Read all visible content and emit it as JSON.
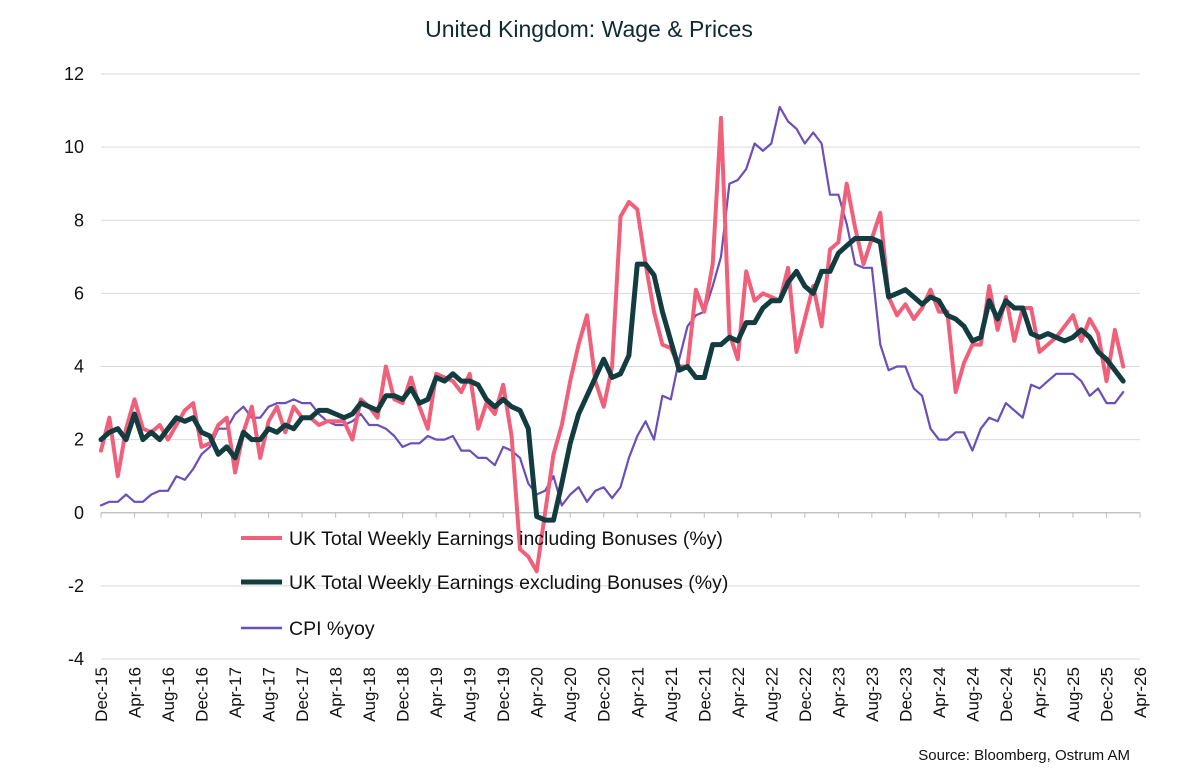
{
  "chart_data": {
    "type": "line",
    "title": "United Kingdom: Wage & Prices",
    "source": "Source: Bloomberg,  Ostrum  AM",
    "ylim": [
      -4,
      12
    ],
    "yticks": [
      -4,
      -2,
      0,
      2,
      4,
      6,
      8,
      10,
      12
    ],
    "x_start": "2015-12",
    "x_end": "2026-04",
    "xtick_labels": [
      "Dec-15",
      "Apr-16",
      "Aug-16",
      "Dec-16",
      "Apr-17",
      "Aug-17",
      "Dec-17",
      "Apr-18",
      "Aug-18",
      "Dec-18",
      "Apr-19",
      "Aug-19",
      "Dec-19",
      "Apr-20",
      "Aug-20",
      "Dec-20",
      "Apr-21",
      "Aug-21",
      "Dec-21",
      "Apr-22",
      "Aug-22",
      "Dec-22",
      "Apr-23",
      "Aug-23",
      "Dec-23",
      "Apr-24",
      "Aug-24",
      "Dec-24",
      "Apr-25",
      "Aug-25",
      "Dec-25",
      "Apr-26"
    ],
    "grid": "horizontal",
    "legend_position": "lower-left",
    "series": [
      {
        "name": "UK Total Weekly Earnings including Bonuses (%y)",
        "color": "#f0607a",
        "start": "2015-12",
        "values": [
          1.7,
          2.6,
          1.0,
          2.3,
          3.1,
          2.3,
          2.2,
          2.4,
          2.0,
          2.4,
          2.8,
          3.0,
          1.8,
          1.9,
          2.4,
          2.6,
          1.1,
          2.2,
          2.9,
          1.5,
          2.5,
          2.9,
          2.2,
          2.9,
          2.6,
          2.6,
          2.4,
          2.5,
          2.5,
          2.5,
          2.0,
          3.1,
          2.9,
          2.6,
          4.0,
          3.1,
          3.0,
          3.7,
          2.9,
          2.3,
          3.8,
          3.7,
          3.6,
          3.3,
          3.8,
          2.3,
          3.0,
          2.7,
          3.5,
          2.1,
          -1.0,
          -1.2,
          -1.6,
          0.0,
          1.6,
          2.4,
          3.6,
          4.6,
          5.4,
          3.6,
          2.9,
          4.0,
          8.1,
          8.5,
          8.3,
          6.8,
          5.5,
          4.6,
          4.5,
          4.0,
          4.0,
          6.1,
          5.5,
          6.8,
          10.8,
          4.9,
          4.2,
          6.6,
          5.8,
          6.0,
          5.9,
          5.8,
          6.7,
          4.4,
          5.3,
          6.2,
          5.1,
          7.2,
          7.4,
          9.0,
          7.8,
          6.8,
          7.5,
          8.2,
          5.9,
          5.4,
          5.7,
          5.3,
          5.6,
          6.1,
          5.5,
          5.5,
          3.3,
          4.1,
          4.6,
          4.6,
          6.2,
          5.0,
          5.9,
          4.7,
          5.6,
          5.6,
          4.4,
          4.6,
          4.8,
          5.1,
          5.4,
          4.7,
          5.3,
          4.9,
          3.6,
          5.0,
          4.0
        ]
      },
      {
        "name": "UK Total Weekly Earnings excluding Bonuses (%y)",
        "color": "#123c40",
        "start": "2015-12",
        "values": [
          2.0,
          2.2,
          2.3,
          2.0,
          2.7,
          2.0,
          2.2,
          2.0,
          2.3,
          2.6,
          2.5,
          2.6,
          2.2,
          2.1,
          1.6,
          1.8,
          1.5,
          2.2,
          2.0,
          2.0,
          2.3,
          2.2,
          2.4,
          2.3,
          2.6,
          2.6,
          2.8,
          2.8,
          2.7,
          2.6,
          2.7,
          3.0,
          2.9,
          2.8,
          3.2,
          3.2,
          3.1,
          3.4,
          3.0,
          3.1,
          3.7,
          3.6,
          3.8,
          3.6,
          3.6,
          3.5,
          3.1,
          2.9,
          3.1,
          2.9,
          2.8,
          2.3,
          -0.1,
          -0.2,
          -0.2,
          0.8,
          1.9,
          2.7,
          3.2,
          3.7,
          4.2,
          3.7,
          3.8,
          4.3,
          6.8,
          6.8,
          6.5,
          5.5,
          4.7,
          3.9,
          4.0,
          3.7,
          3.7,
          4.6,
          4.6,
          4.8,
          4.7,
          5.2,
          5.2,
          5.6,
          5.8,
          5.8,
          6.3,
          6.6,
          6.2,
          6.0,
          6.6,
          6.6,
          7.1,
          7.3,
          7.5,
          7.5,
          7.5,
          7.4,
          5.9,
          6.0,
          6.1,
          5.9,
          5.7,
          5.9,
          5.8,
          5.4,
          5.3,
          5.1,
          4.7,
          4.8,
          5.8,
          5.3,
          5.8,
          5.6,
          5.6,
          4.9,
          4.8,
          4.9,
          4.8,
          4.7,
          4.8,
          5.0,
          4.8,
          4.4,
          4.2,
          3.9,
          3.6
        ]
      },
      {
        "name": "CPI %yoy",
        "color": "#6a4fb8",
        "start": "2015-12",
        "values": [
          0.2,
          0.3,
          0.3,
          0.5,
          0.3,
          0.3,
          0.5,
          0.6,
          0.6,
          1.0,
          0.9,
          1.2,
          1.6,
          1.8,
          2.3,
          2.3,
          2.7,
          2.9,
          2.6,
          2.6,
          2.9,
          3.0,
          3.0,
          3.1,
          3.0,
          3.0,
          2.7,
          2.5,
          2.4,
          2.4,
          2.5,
          2.7,
          2.4,
          2.4,
          2.3,
          2.1,
          1.8,
          1.9,
          1.9,
          2.1,
          2.0,
          2.0,
          2.1,
          1.7,
          1.7,
          1.5,
          1.5,
          1.3,
          1.8,
          1.7,
          1.5,
          0.8,
          0.5,
          0.6,
          1.0,
          0.2,
          0.5,
          0.7,
          0.3,
          0.6,
          0.7,
          0.4,
          0.7,
          1.5,
          2.1,
          2.5,
          2.0,
          3.2,
          3.1,
          4.2,
          5.1,
          5.4,
          5.5,
          6.2,
          7.0,
          9.0,
          9.1,
          9.4,
          10.1,
          9.9,
          10.1,
          11.1,
          10.7,
          10.5,
          10.1,
          10.4,
          10.1,
          8.7,
          8.7,
          7.9,
          6.8,
          6.7,
          6.7,
          4.6,
          3.9,
          4.0,
          4.0,
          3.4,
          3.2,
          2.3,
          2.0,
          2.0,
          2.2,
          2.2,
          1.7,
          2.3,
          2.6,
          2.5,
          3.0,
          2.8,
          2.6,
          3.5,
          3.4,
          3.6,
          3.8,
          3.8,
          3.8,
          3.6,
          3.2,
          3.4,
          3.0,
          3.0,
          3.3
        ]
      }
    ]
  }
}
